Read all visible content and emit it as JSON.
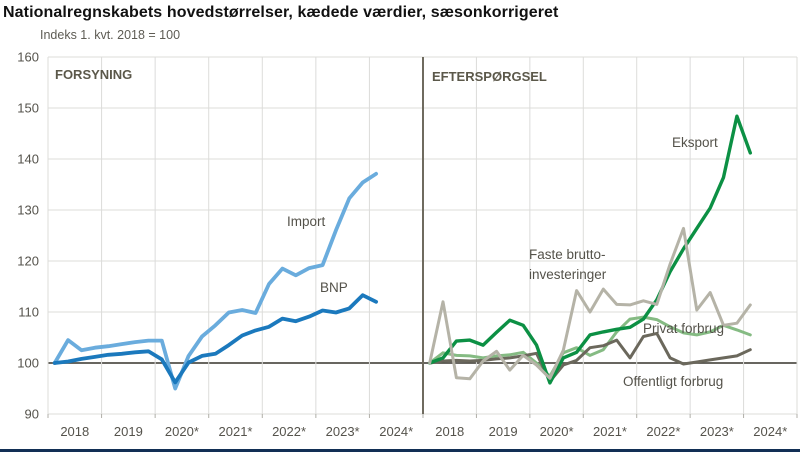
{
  "header": {
    "title": "Nationalregnskabets hovedstørrelser, kædede værdier, sæsonkorrigeret",
    "subtitle": "Indeks 1. kvt. 2018 = 100"
  },
  "annotations": {
    "import": "Import",
    "bnp": "BNP",
    "eksport": "Eksport",
    "investments_line1": "Faste brutto-",
    "investments_line2": "investeringer",
    "privat": "Privat forbrug",
    "offentligt": "Offentligt forbrug"
  },
  "chart_data": {
    "type": "line",
    "frequency": "quarterly",
    "x_start": "2018-Q1",
    "x_end": "2024-Q1",
    "x_labels": [
      "2018",
      "2019",
      "2020*",
      "2021*",
      "2022*",
      "2023*",
      "2024*"
    ],
    "y_ticks": [
      160,
      150,
      140,
      130,
      120,
      110,
      100,
      90
    ],
    "ylim": [
      90,
      160
    ],
    "reference_value": 100,
    "grid": true,
    "colors": {
      "grid": "#dcdcda",
      "reference_line": "#53514a",
      "divider": "#6f6b5f",
      "axis_text": "#55534c",
      "bottom_rule": "#122f55"
    },
    "panels": [
      {
        "name": "FORSYNING",
        "series": [
          {
            "name": "Import",
            "color": "#6aacdd",
            "width": 3.8,
            "values": [
              100,
              104.5,
              102.5,
              103,
              103.3,
              103.7,
              104.1,
              104.4,
              104.4,
              95,
              101.4,
              105.2,
              107.4,
              109.9,
              110.4,
              109.8,
              115.5,
              118.5,
              117.2,
              118.6,
              119.2,
              126,
              132.3,
              135.4,
              137.1
            ]
          },
          {
            "name": "BNP",
            "color": "#1b79bd",
            "width": 3.8,
            "values": [
              100,
              100.3,
              100.8,
              101.2,
              101.6,
              101.8,
              102.1,
              102.3,
              100.7,
              96.2,
              100.1,
              101.4,
              101.8,
              103.5,
              105.4,
              106.4,
              107.1,
              108.7,
              108.2,
              109.1,
              110.3,
              109.9,
              110.7,
              113.3,
              112
            ]
          }
        ]
      },
      {
        "name": "EFTERSPØRGSEL",
        "series": [
          {
            "name": "Privat forbrug",
            "color": "#85bb83",
            "width": 3,
            "values": [
              100,
              102,
              101.5,
              101.4,
              101,
              101.4,
              101.6,
              102.1,
              100,
              97.4,
              102,
              103,
              101.5,
              102.6,
              106.1,
              108.6,
              109,
              108.5,
              107.1,
              105.9,
              105.5,
              106.1,
              107.4,
              106.5,
              105.5
            ]
          },
          {
            "name": "Offentligt forbrug",
            "color": "#6b685c",
            "width": 3,
            "values": [
              100,
              100.4,
              100.5,
              100.4,
              100.5,
              100.8,
              101,
              101.4,
              101.9,
              96.4,
              99.6,
              100.5,
              103,
              103.4,
              104.5,
              101,
              105.2,
              105.8,
              101,
              99.8,
              100.2,
              100.6,
              101,
              101.4,
              102.6
            ]
          },
          {
            "name": "Eksport",
            "color": "#0c9044",
            "width": 3.4,
            "values": [
              100,
              101,
              104.3,
              104.5,
              103.5,
              106,
              108.4,
              107.4,
              103.5,
              96.1,
              101,
              102.1,
              105.5,
              106.1,
              106.6,
              107,
              108.6,
              112.4,
              117.9,
              122.4,
              126.4,
              130.4,
              136.4,
              148.4,
              141.2
            ]
          },
          {
            "name": "Faste bruttoinvesteringer",
            "color": "#b5b3a7",
            "width": 3,
            "values": [
              100,
              112,
              97.1,
              96.9,
              100.4,
              102.3,
              98.6,
              101.5,
              99.6,
              97,
              102.5,
              114.2,
              110,
              114.5,
              111.5,
              111.4,
              112.2,
              111.5,
              119.4,
              126.4,
              110.4,
              113.8,
              107.4,
              107.8,
              111.4
            ]
          }
        ]
      }
    ]
  }
}
